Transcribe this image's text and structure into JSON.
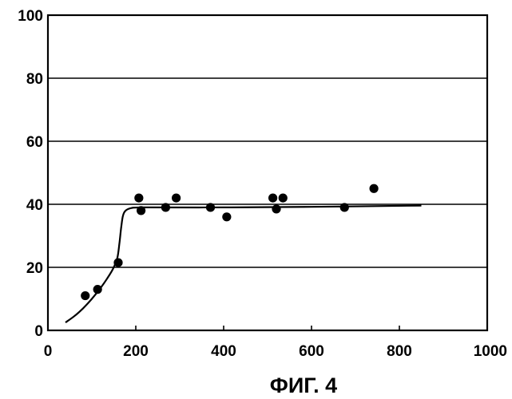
{
  "chart_data": {
    "type": "scatter",
    "title": "",
    "xlabel": "",
    "ylabel": "",
    "caption": "ФИГ. 4",
    "xlim": [
      0,
      1000
    ],
    "ylim": [
      0,
      100
    ],
    "x_ticks": [
      0,
      200,
      400,
      600,
      800,
      1000
    ],
    "y_ticks": [
      0,
      20,
      40,
      60,
      80,
      100
    ],
    "grid": {
      "horizontal": true,
      "vertical": false
    },
    "legend": "none",
    "series": [
      {
        "kind": "scatter",
        "points": [
          {
            "x": 85,
            "y": 11
          },
          {
            "x": 113,
            "y": 13
          },
          {
            "x": 160,
            "y": 21.5
          },
          {
            "x": 207,
            "y": 42
          },
          {
            "x": 212,
            "y": 38
          },
          {
            "x": 268,
            "y": 39
          },
          {
            "x": 292,
            "y": 42
          },
          {
            "x": 370,
            "y": 39
          },
          {
            "x": 407,
            "y": 36
          },
          {
            "x": 512,
            "y": 42
          },
          {
            "x": 520,
            "y": 38.5
          },
          {
            "x": 535,
            "y": 42
          },
          {
            "x": 675,
            "y": 39
          },
          {
            "x": 742,
            "y": 45
          }
        ]
      },
      {
        "kind": "line",
        "curve": [
          {
            "x": 40,
            "y": 2.5
          },
          {
            "x": 60,
            "y": 4.5
          },
          {
            "x": 80,
            "y": 7
          },
          {
            "x": 100,
            "y": 10
          },
          {
            "x": 120,
            "y": 13.5
          },
          {
            "x": 135,
            "y": 16.5
          },
          {
            "x": 148,
            "y": 19.5
          },
          {
            "x": 158,
            "y": 23
          },
          {
            "x": 163,
            "y": 28
          },
          {
            "x": 167,
            "y": 33
          },
          {
            "x": 171,
            "y": 36.5
          },
          {
            "x": 177,
            "y": 38
          },
          {
            "x": 190,
            "y": 38.8
          },
          {
            "x": 220,
            "y": 39
          },
          {
            "x": 400,
            "y": 39
          },
          {
            "x": 600,
            "y": 39.2
          },
          {
            "x": 850,
            "y": 39.6
          }
        ]
      }
    ]
  },
  "style": {
    "line_color": "#000000",
    "marker_color": "#000000"
  }
}
